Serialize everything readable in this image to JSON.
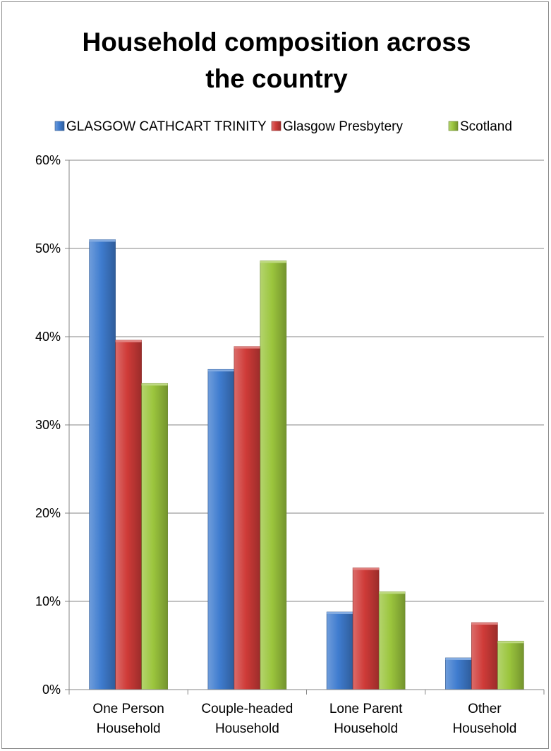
{
  "chart_data": {
    "type": "bar",
    "title_lines": [
      "Household composition across",
      "the country"
    ],
    "categories": [
      [
        "One Person",
        "Household"
      ],
      [
        "Couple-headed",
        "Household"
      ],
      [
        "Lone Parent",
        "Household"
      ],
      [
        "Other",
        "Household"
      ]
    ],
    "series": [
      {
        "name": "GLASGOW CATHCART TRINITY",
        "color": "#3f7ccf",
        "values": [
          51.0,
          36.3,
          8.8,
          3.6
        ]
      },
      {
        "name": "Glasgow Presbytery",
        "color": "#cf3b38",
        "values": [
          39.6,
          38.9,
          13.8,
          7.6
        ]
      },
      {
        "name": "Scotland",
        "color": "#9bc53d",
        "values": [
          34.7,
          48.6,
          11.1,
          5.5
        ]
      }
    ],
    "ylim": [
      0,
      60
    ],
    "yticks": [
      "0%",
      "10%",
      "20%",
      "30%",
      "40%",
      "50%",
      "60%"
    ],
    "grid": true,
    "legend_position": "top"
  }
}
